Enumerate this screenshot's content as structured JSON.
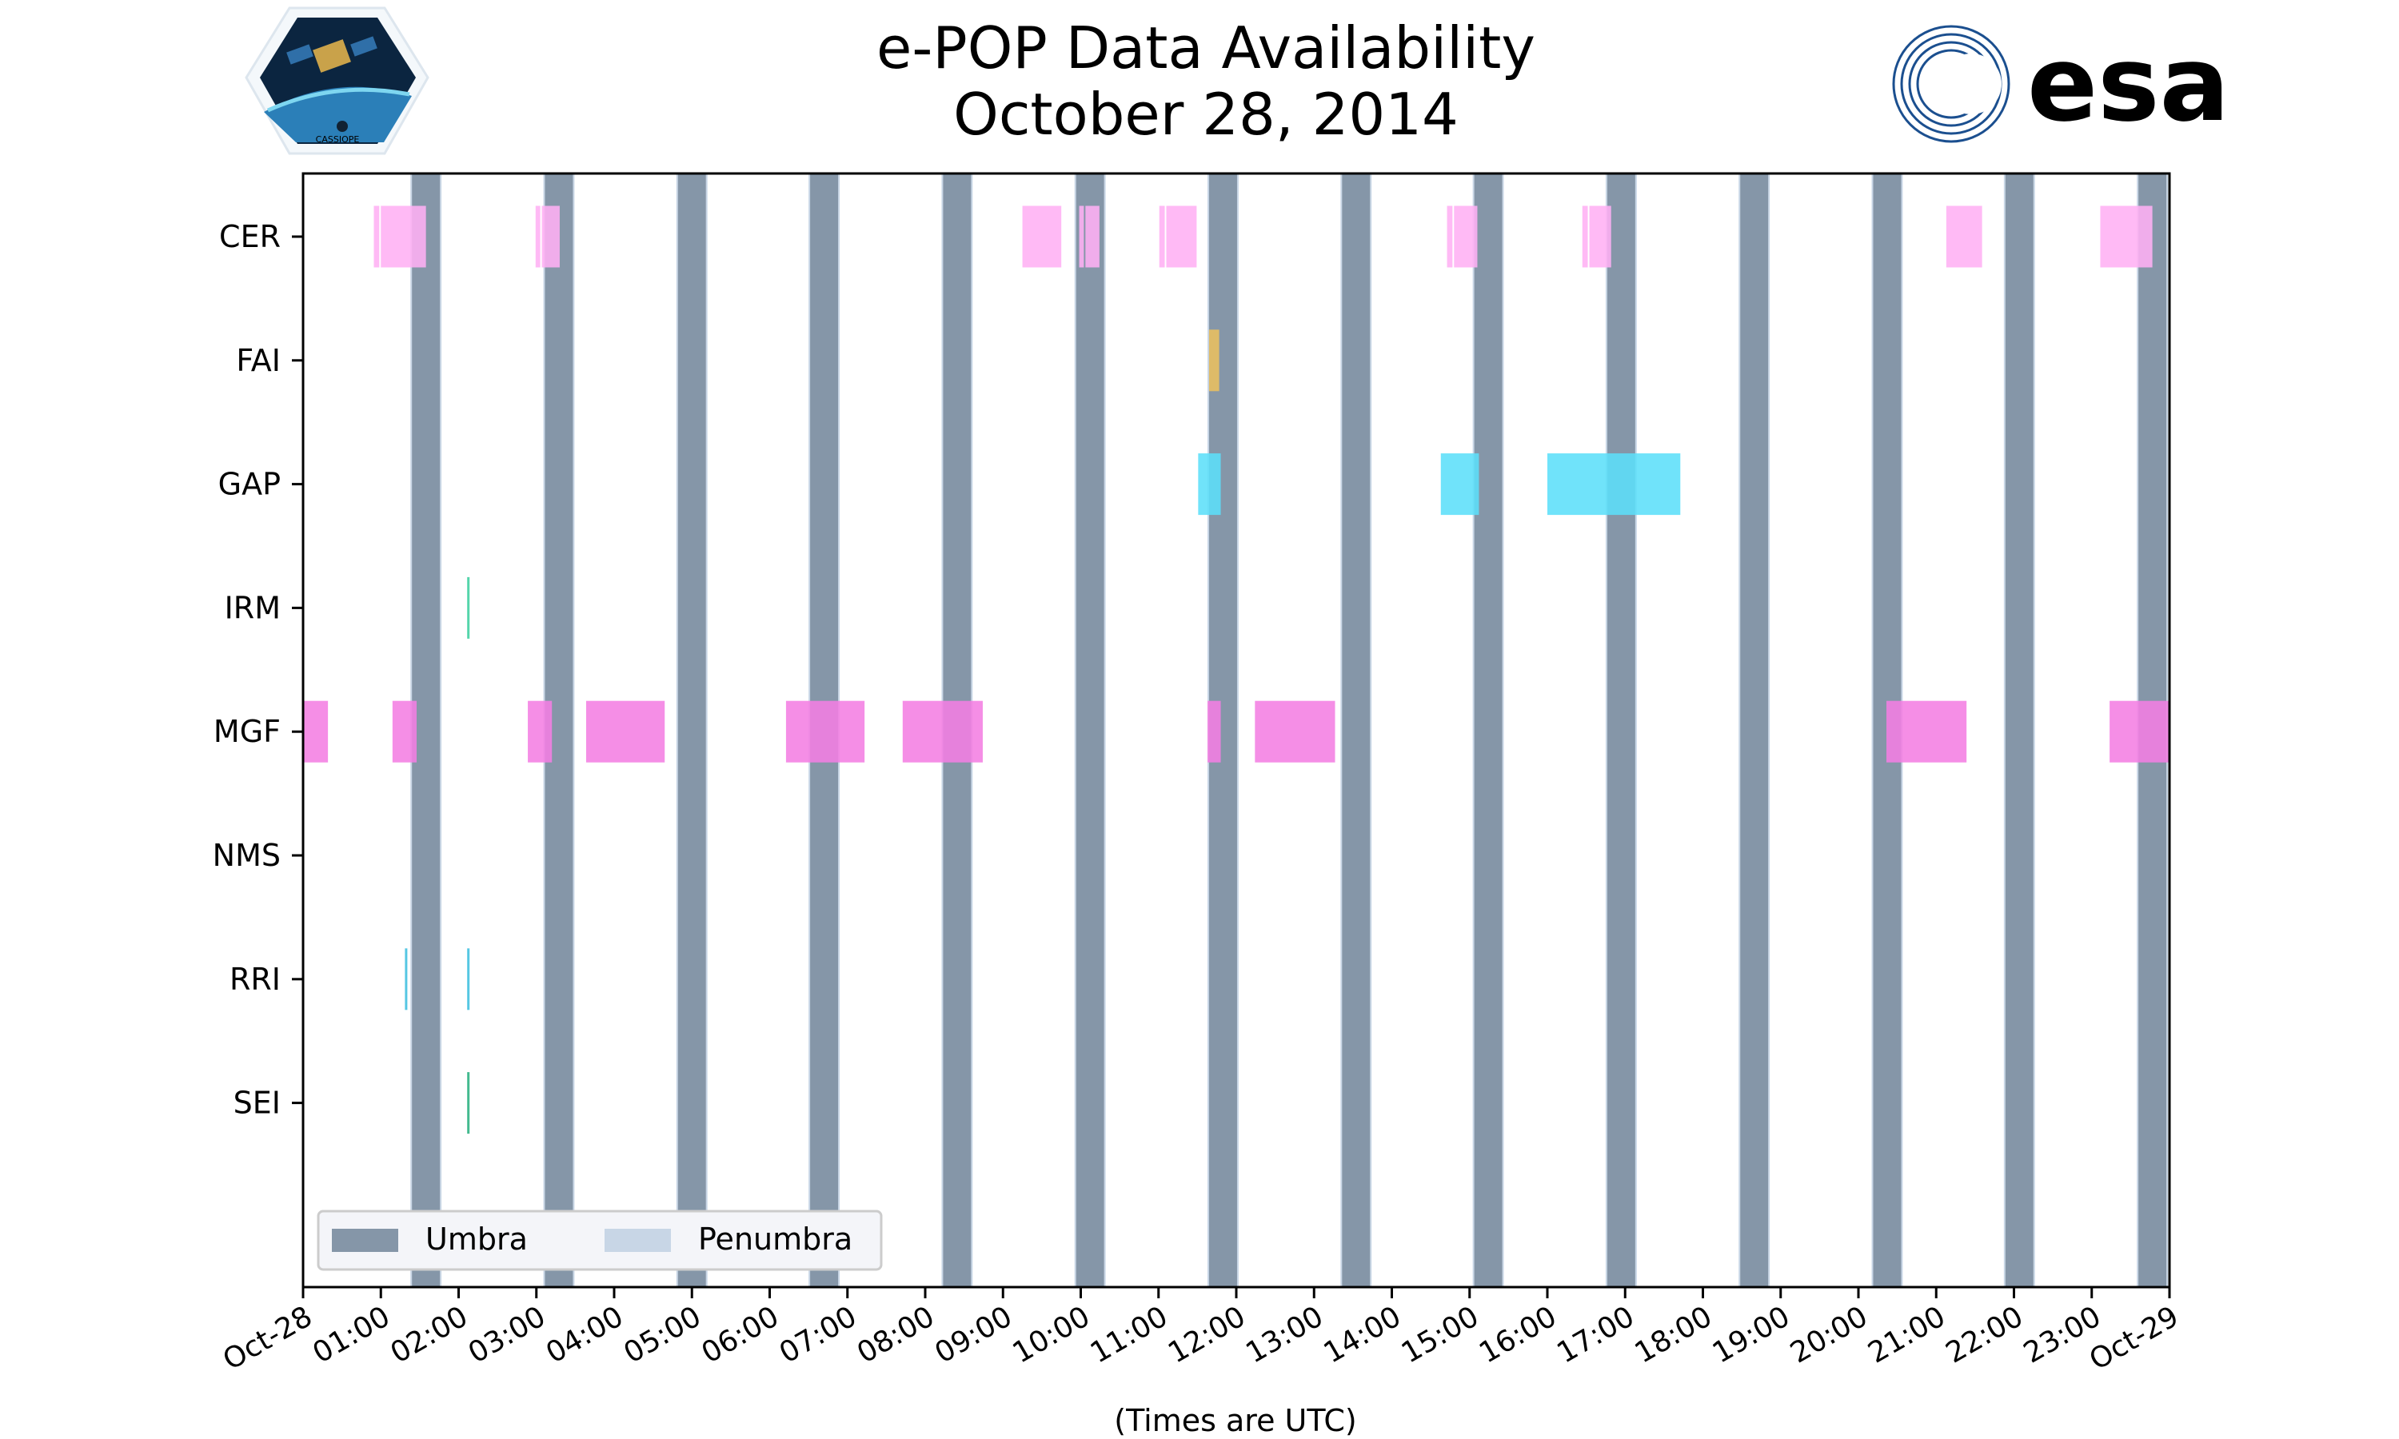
{
  "logos": {
    "left": "CASSIOPE",
    "right": "esa"
  },
  "chart_data": {
    "type": "timeline",
    "title": [
      "e-POP Data Availability",
      "October 28, 2014"
    ],
    "xlabel": "(Times are UTC)",
    "ylabel": "",
    "xlim_hours": [
      0,
      24
    ],
    "x_tick_labels": [
      "Oct-28",
      "01:00",
      "02:00",
      "03:00",
      "04:00",
      "05:00",
      "06:00",
      "07:00",
      "08:00",
      "09:00",
      "10:00",
      "11:00",
      "12:00",
      "13:00",
      "14:00",
      "15:00",
      "16:00",
      "17:00",
      "18:00",
      "19:00",
      "20:00",
      "21:00",
      "22:00",
      "23:00",
      "Oct-29"
    ],
    "instruments": [
      {
        "name": "CER",
        "color": "#ffb0f4",
        "intervals_hours": [
          [
            0.91,
            0.98
          ],
          [
            1.0,
            1.58
          ],
          [
            2.99,
            3.05
          ],
          [
            3.07,
            3.3
          ],
          [
            9.25,
            9.75
          ],
          [
            9.98,
            10.04
          ],
          [
            10.06,
            10.24
          ],
          [
            11.01,
            11.08
          ],
          [
            11.1,
            11.49
          ],
          [
            14.71,
            14.78
          ],
          [
            14.8,
            15.1
          ],
          [
            16.45,
            16.52
          ],
          [
            16.54,
            16.82
          ],
          [
            21.13,
            21.59
          ],
          [
            23.11,
            23.78
          ]
        ]
      },
      {
        "name": "FAI",
        "color": "#ebc05e",
        "intervals_hours": [
          [
            11.65,
            11.78
          ]
        ]
      },
      {
        "name": "GAP",
        "color": "#5cdff9",
        "intervals_hours": [
          [
            11.51,
            11.8
          ],
          [
            14.63,
            15.12
          ],
          [
            16.0,
            17.71
          ]
        ]
      },
      {
        "name": "IRM",
        "color": "#3dcf9f",
        "intervals_hours": [
          [
            2.11,
            2.14
          ]
        ]
      },
      {
        "name": "MGF",
        "color": "#f47ee3",
        "intervals_hours": [
          [
            0.0,
            0.32
          ],
          [
            1.15,
            1.46
          ],
          [
            2.89,
            3.2
          ],
          [
            3.64,
            4.65
          ],
          [
            6.21,
            7.22
          ],
          [
            7.71,
            8.74
          ],
          [
            11.63,
            11.8
          ],
          [
            12.24,
            13.27
          ],
          [
            20.36,
            21.39
          ],
          [
            23.23,
            24.0
          ]
        ]
      },
      {
        "name": "NMS",
        "color": "#888888",
        "intervals_hours": []
      },
      {
        "name": "RRI",
        "color": "#3fbfdf",
        "intervals_hours": [
          [
            1.31,
            1.34
          ],
          [
            2.11,
            2.14
          ]
        ]
      },
      {
        "name": "SEI",
        "color": "#2ab080",
        "intervals_hours": [
          [
            2.11,
            2.14
          ]
        ]
      }
    ],
    "umbra": {
      "label": "Umbra",
      "color": "#8596a8",
      "start_hours": [
        1.4,
        3.11,
        4.82,
        6.52,
        8.23,
        9.94,
        11.65,
        13.36,
        15.06,
        16.77,
        18.48,
        20.19,
        21.89,
        23.6
      ],
      "duration_hours": 0.36
    },
    "penumbra": {
      "label": "Penumbra",
      "color": "#c8d6e6",
      "duration_hours": 0.02
    },
    "legend_position": "lower-left",
    "grid": false
  }
}
